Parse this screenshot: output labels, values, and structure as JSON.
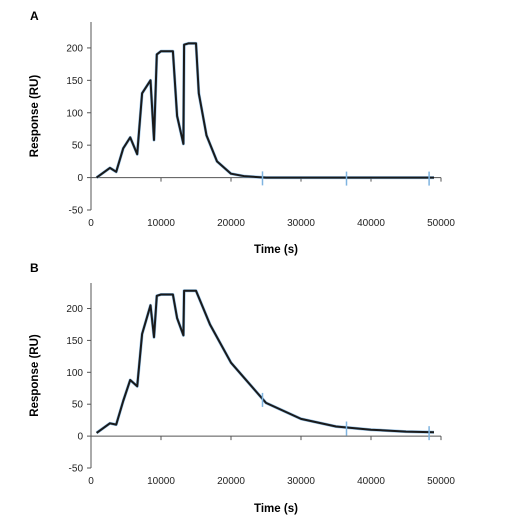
{
  "chart_data": [
    {
      "panel": "A",
      "type": "line",
      "xlabel": "Time (s)",
      "ylabel": "Response (RU)",
      "xlim": [
        0,
        50000
      ],
      "ylim": [
        -50,
        240
      ],
      "xticks": [
        "0",
        "10000",
        "20000",
        "30000",
        "40000",
        "50000"
      ],
      "yticks": [
        "-50",
        "0",
        "50",
        "100",
        "150",
        "200"
      ],
      "grid": false,
      "series": [
        {
          "x": [
            800,
            2700,
            3600,
            4600,
            5600,
            6600,
            7300,
            8500,
            9000,
            9400,
            10000,
            11700,
            12300,
            13200,
            13300,
            13900,
            15000,
            15400,
            16500,
            18000,
            20000,
            22000,
            25000,
            30000,
            40000,
            49000
          ],
          "y": [
            0,
            15,
            9,
            45,
            62,
            36,
            130,
            150,
            58,
            190,
            195,
            195,
            95,
            52,
            205,
            207,
            207,
            130,
            65,
            25,
            6,
            2,
            0,
            0,
            0,
            0
          ]
        }
      ],
      "spikes": [
        24500,
        36500,
        48300
      ]
    },
    {
      "panel": "B",
      "type": "line",
      "xlabel": "Time (s)",
      "ylabel": "Response (RU)",
      "xlim": [
        0,
        50000
      ],
      "ylim": [
        -50,
        240
      ],
      "xticks": [
        "0",
        "10000",
        "20000",
        "30000",
        "40000",
        "50000"
      ],
      "yticks": [
        "-50",
        "0",
        "50",
        "100",
        "150",
        "200"
      ],
      "grid": false,
      "series": [
        {
          "x": [
            800,
            2700,
            3600,
            4600,
            5600,
            6600,
            7300,
            8500,
            9000,
            9400,
            10000,
            11700,
            12300,
            13200,
            13300,
            13900,
            15000,
            17000,
            20000,
            25000,
            30000,
            35000,
            40000,
            45000,
            49000
          ],
          "y": [
            5,
            20,
            18,
            55,
            88,
            78,
            160,
            205,
            155,
            220,
            222,
            222,
            185,
            158,
            228,
            228,
            228,
            175,
            115,
            52,
            27,
            15,
            10,
            7,
            6
          ]
        }
      ],
      "spikes": [
        24500,
        36500,
        48300
      ]
    }
  ]
}
